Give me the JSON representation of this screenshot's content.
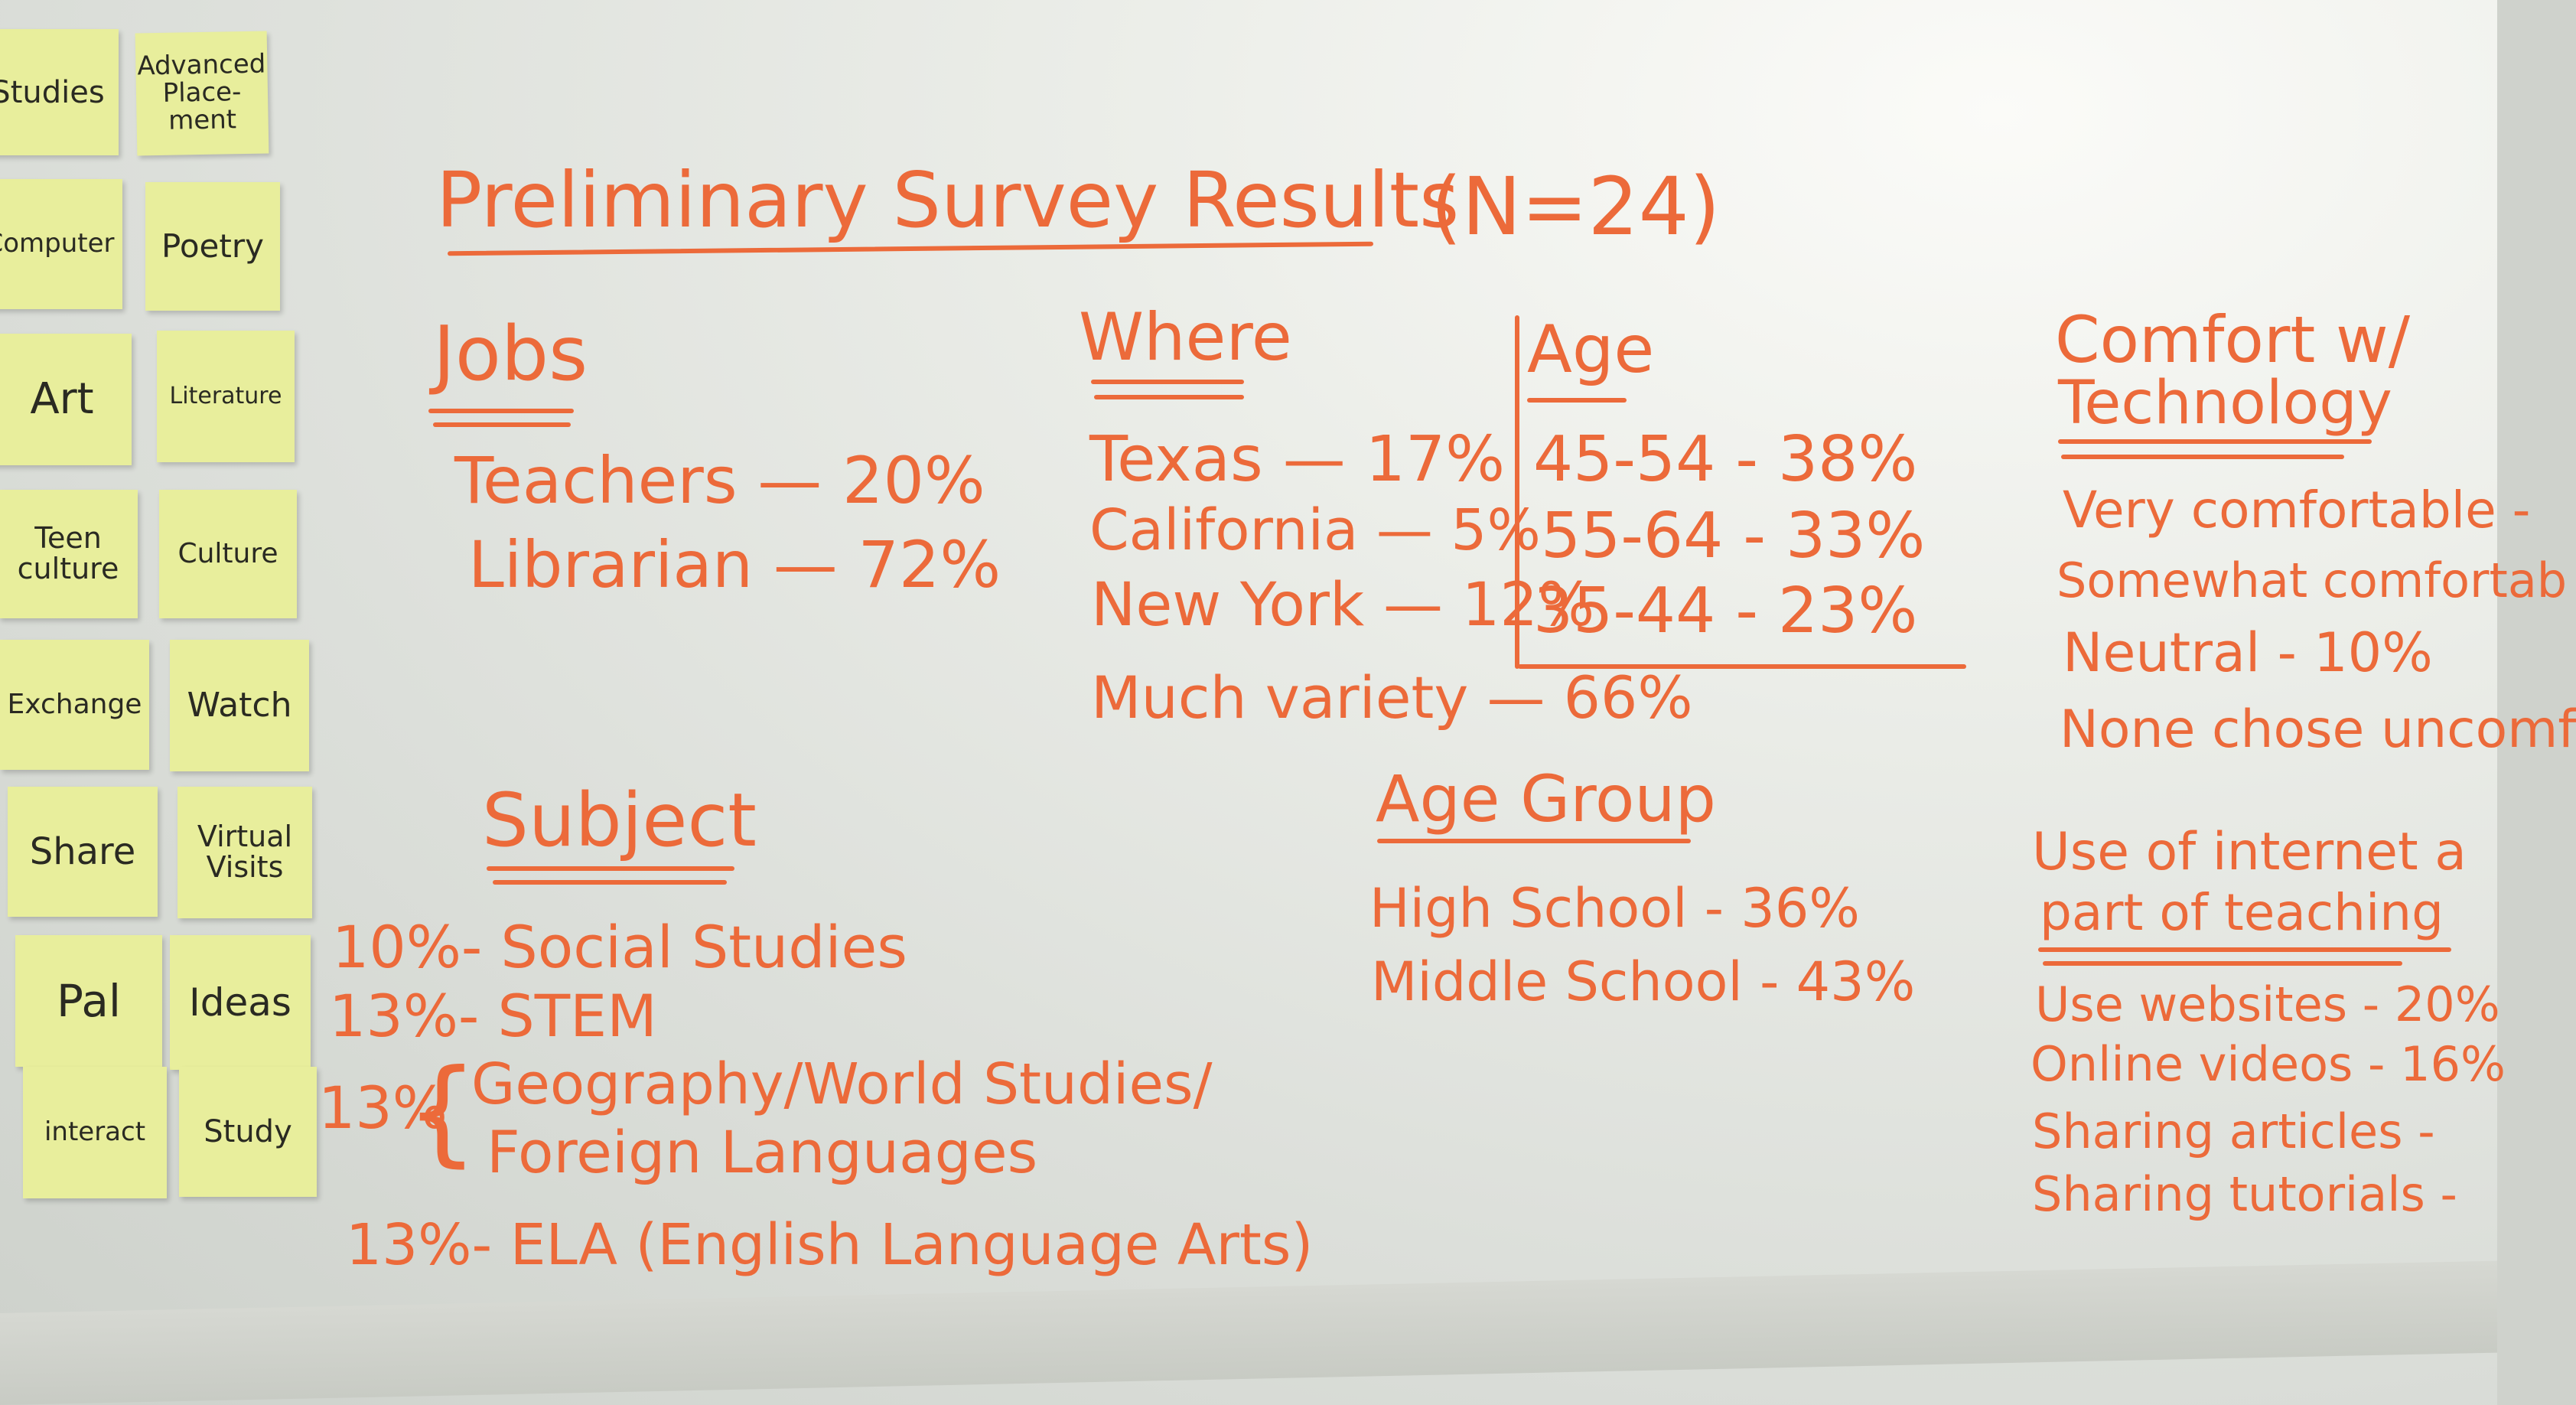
{
  "sticky_notes": [
    "Studies",
    "Advanced Place- ment",
    "Computer",
    "Poetry",
    "Art",
    "Literature",
    "Teen culture",
    "Culture",
    "Exchange",
    "Watch",
    "Share",
    "Virtual Visits",
    "Pal",
    "Ideas",
    "interact",
    "Study"
  ],
  "title": "Preliminary Survey Results",
  "sample": "(N=24)",
  "jobs": {
    "heading": "Jobs",
    "items": [
      "Teachers — 20%",
      "Librarian — 72%"
    ]
  },
  "where": {
    "heading": "Where",
    "items": [
      "Texas — 17%",
      "California — 5%",
      "New York — 12%",
      "Much variety — 66%"
    ]
  },
  "age": {
    "heading": "Age",
    "items": [
      "45-54 - 38%",
      "55-64 - 33%",
      "35-44 - 23%"
    ]
  },
  "comfort": {
    "heading_line1": "Comfort w/",
    "heading_line2": "Technology",
    "items": [
      "Very comfortable - ",
      "Somewhat comfortab",
      "Neutral - 10%",
      "None chose uncomf"
    ]
  },
  "subject": {
    "heading": "Subject",
    "items": [
      "10%- Social Studies",
      "13%- STEM",
      "Geography/World Studies/",
      "Foreign Languages",
      "13%- ELA (English Language Arts)"
    ],
    "brace_label": "13%"
  },
  "age_group": {
    "heading": "Age Group",
    "items": [
      "High School - 36%",
      "Middle School - 43%"
    ]
  },
  "internet": {
    "heading_line1": "Use of internet a",
    "heading_line2": "part of teaching",
    "items": [
      "Use websites - 20%",
      "Online videos - 16%",
      "Sharing articles -",
      "Sharing tutorials -"
    ]
  }
}
